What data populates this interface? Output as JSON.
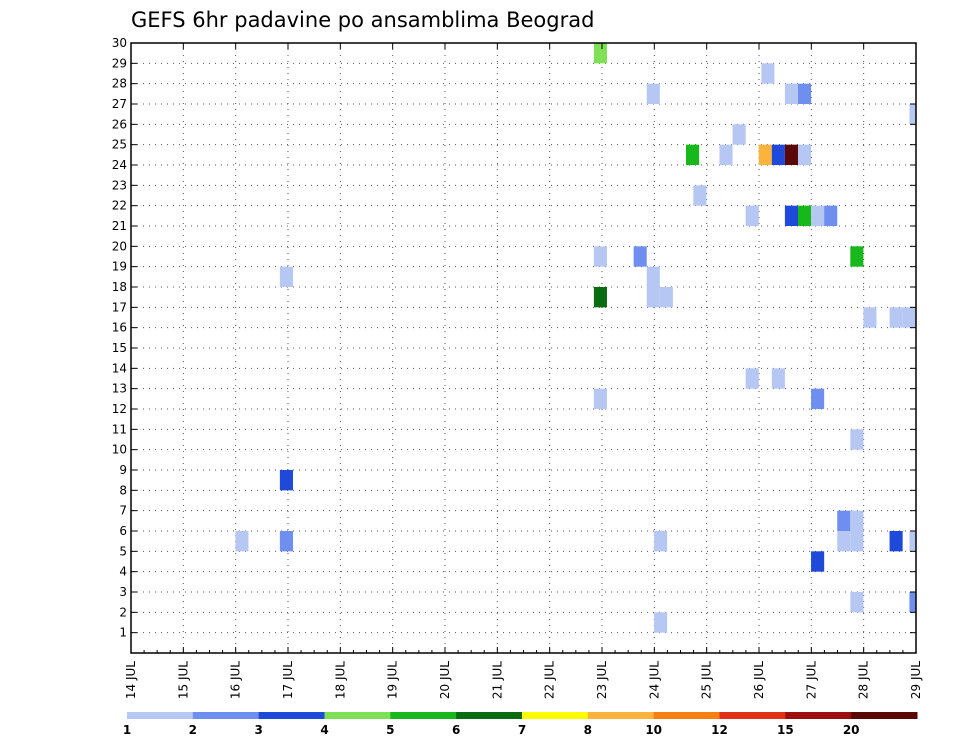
{
  "chart_data": {
    "type": "heatmap",
    "title": "GEFS 6hr padavine po ansamblima Beograd",
    "x_tick_labels": [
      "14 JUL",
      "15 JUL",
      "16 JUL",
      "17 JUL",
      "18 JUL",
      "19 JUL",
      "20 JUL",
      "21 JUL",
      "22 JUL",
      "23 JUL",
      "24 JUL",
      "25 JUL",
      "26 JUL",
      "27 JUL",
      "28 JUL",
      "29 JUL"
    ],
    "y_tick_labels": [
      "1",
      "2",
      "3",
      "4",
      "5",
      "6",
      "7",
      "8",
      "9",
      "10",
      "11",
      "12",
      "13",
      "14",
      "15",
      "16",
      "17",
      "18",
      "19",
      "20",
      "21",
      "22",
      "23",
      "24",
      "25",
      "26",
      "27",
      "28",
      "29",
      "30"
    ],
    "x_range_days": [
      14,
      29
    ],
    "y_range": [
      0,
      30
    ],
    "grid": true,
    "legend": "colorbar-bottom",
    "colorbar": {
      "labels": [
        "1",
        "2",
        "3",
        "4",
        "5",
        "6",
        "7",
        "8",
        "10",
        "12",
        "15",
        "20"
      ],
      "colors": [
        "#b7c7f4",
        "#6e8ef0",
        "#1f49d8",
        "#7fe056",
        "#17b81b",
        "#0a6b10",
        "#fefe00",
        "#fbb33c",
        "#f77f12",
        "#e03018",
        "#9e0d0d",
        "#5a0708"
      ]
    },
    "cells": [
      {
        "day": 22.97,
        "member": 30,
        "color": "#7fe056"
      },
      {
        "day": 26.17,
        "member": 29,
        "color": "#b7c7f4"
      },
      {
        "day": 23.98,
        "member": 28,
        "color": "#b7c7f4"
      },
      {
        "day": 26.62,
        "member": 28,
        "color": "#b7c7f4"
      },
      {
        "day": 26.87,
        "member": 28,
        "color": "#6e8ef0"
      },
      {
        "day": 29.0,
        "member": 27,
        "color": "#b7c7f4"
      },
      {
        "day": 25.62,
        "member": 26,
        "color": "#b7c7f4"
      },
      {
        "day": 24.73,
        "member": 25,
        "color": "#17b81b"
      },
      {
        "day": 25.37,
        "member": 25,
        "color": "#b7c7f4"
      },
      {
        "day": 26.12,
        "member": 25,
        "color": "#fbb33c"
      },
      {
        "day": 26.37,
        "member": 25,
        "color": "#1f49d8"
      },
      {
        "day": 26.62,
        "member": 25,
        "color": "#5a0708"
      },
      {
        "day": 26.87,
        "member": 25,
        "color": "#b7c7f4"
      },
      {
        "day": 24.87,
        "member": 23,
        "color": "#b7c7f4"
      },
      {
        "day": 25.87,
        "member": 22,
        "color": "#b7c7f4"
      },
      {
        "day": 26.62,
        "member": 22,
        "color": "#1f49d8"
      },
      {
        "day": 26.87,
        "member": 22,
        "color": "#17b81b"
      },
      {
        "day": 27.12,
        "member": 22,
        "color": "#b7c7f4"
      },
      {
        "day": 27.37,
        "member": 22,
        "color": "#6e8ef0"
      },
      {
        "day": 22.97,
        "member": 20,
        "color": "#b7c7f4"
      },
      {
        "day": 23.73,
        "member": 20,
        "color": "#6e8ef0"
      },
      {
        "day": 27.87,
        "member": 20,
        "color": "#17b81b"
      },
      {
        "day": 16.97,
        "member": 19,
        "color": "#b7c7f4"
      },
      {
        "day": 23.98,
        "member": 19,
        "color": "#b7c7f4"
      },
      {
        "day": 22.97,
        "member": 18,
        "color": "#0a6b10"
      },
      {
        "day": 23.98,
        "member": 18,
        "color": "#b7c7f4"
      },
      {
        "day": 24.23,
        "member": 18,
        "color": "#b7c7f4"
      },
      {
        "day": 28.12,
        "member": 17,
        "color": "#b7c7f4"
      },
      {
        "day": 28.62,
        "member": 17,
        "color": "#b7c7f4"
      },
      {
        "day": 28.87,
        "member": 17,
        "color": "#b7c7f4"
      },
      {
        "day": 25.87,
        "member": 14,
        "color": "#b7c7f4"
      },
      {
        "day": 26.37,
        "member": 14,
        "color": "#b7c7f4"
      },
      {
        "day": 22.97,
        "member": 13,
        "color": "#b7c7f4"
      },
      {
        "day": 27.12,
        "member": 13,
        "color": "#6e8ef0"
      },
      {
        "day": 27.87,
        "member": 11,
        "color": "#b7c7f4"
      },
      {
        "day": 16.97,
        "member": 9,
        "color": "#1f49d8"
      },
      {
        "day": 27.62,
        "member": 7,
        "color": "#6e8ef0"
      },
      {
        "day": 27.87,
        "member": 7,
        "color": "#b7c7f4"
      },
      {
        "day": 27.62,
        "member": 6,
        "color": "#b7c7f4"
      },
      {
        "day": 27.87,
        "member": 6,
        "color": "#b7c7f4"
      },
      {
        "day": 16.12,
        "member": 6,
        "color": "#b7c7f4"
      },
      {
        "day": 16.97,
        "member": 6,
        "color": "#6e8ef0"
      },
      {
        "day": 24.12,
        "member": 6,
        "color": "#b7c7f4"
      },
      {
        "day": 28.62,
        "member": 6,
        "color": "#1f49d8"
      },
      {
        "day": 29.0,
        "member": 6,
        "color": "#b7c7f4"
      },
      {
        "day": 27.12,
        "member": 5,
        "color": "#1f49d8"
      },
      {
        "day": 27.87,
        "member": 3,
        "color": "#b7c7f4"
      },
      {
        "day": 29.0,
        "member": 3,
        "color": "#6e8ef0"
      },
      {
        "day": 24.12,
        "member": 2,
        "color": "#b7c7f4"
      }
    ]
  }
}
